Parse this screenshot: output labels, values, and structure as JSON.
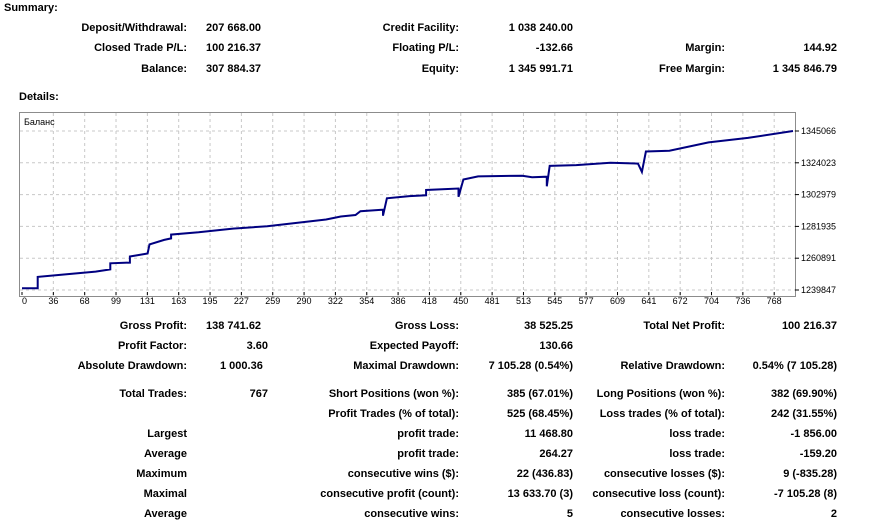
{
  "summary": {
    "title": "Summary:",
    "deposit_withdrawal_label": "Deposit/Withdrawal:",
    "deposit_withdrawal_value": "207 668.00",
    "credit_facility_label": "Credit Facility:",
    "credit_facility_value": "1 038 240.00",
    "closed_trade_pl_label": "Closed Trade P/L:",
    "closed_trade_pl_value": "100 216.37",
    "floating_pl_label": "Floating P/L:",
    "floating_pl_value": "-132.66",
    "margin_label": "Margin:",
    "margin_value": "144.92",
    "balance_label": "Balance:",
    "balance_value": "307 884.37",
    "equity_label": "Equity:",
    "equity_value": "1 345 991.71",
    "free_margin_label": "Free Margin:",
    "free_margin_value": "1 345 846.79"
  },
  "details": {
    "title": "Details:"
  },
  "chart_data": {
    "type": "line",
    "legend": "Баланс",
    "x_ticks": [
      "0",
      "36",
      "68",
      "99",
      "131",
      "163",
      "195",
      "227",
      "259",
      "290",
      "322",
      "354",
      "386",
      "418",
      "450",
      "481",
      "513",
      "545",
      "577",
      "609",
      "641",
      "672",
      "704",
      "736",
      "768"
    ],
    "y_ticks": [
      "1345066",
      "1324023",
      "1302979",
      "1281935",
      "1260891",
      "1239847"
    ],
    "ylim": [
      1239847,
      1345066
    ],
    "xlim": [
      0,
      786
    ],
    "grid": true,
    "line_color": "#000080",
    "series": [
      {
        "x": 0,
        "y": 1241000
      },
      {
        "x": 16,
        "y": 1241000
      },
      {
        "x": 16,
        "y": 1248500
      },
      {
        "x": 40,
        "y": 1250000
      },
      {
        "x": 75,
        "y": 1252000
      },
      {
        "x": 90,
        "y": 1253500
      },
      {
        "x": 90,
        "y": 1257500
      },
      {
        "x": 110,
        "y": 1258000
      },
      {
        "x": 110,
        "y": 1262000
      },
      {
        "x": 128,
        "y": 1264000
      },
      {
        "x": 130,
        "y": 1270000
      },
      {
        "x": 145,
        "y": 1273000
      },
      {
        "x": 152,
        "y": 1274000
      },
      {
        "x": 152,
        "y": 1276500
      },
      {
        "x": 180,
        "y": 1278000
      },
      {
        "x": 215,
        "y": 1280500
      },
      {
        "x": 250,
        "y": 1282000
      },
      {
        "x": 290,
        "y": 1285000
      },
      {
        "x": 310,
        "y": 1286500
      },
      {
        "x": 325,
        "y": 1288500
      },
      {
        "x": 340,
        "y": 1289500
      },
      {
        "x": 345,
        "y": 1292000
      },
      {
        "x": 368,
        "y": 1293000
      },
      {
        "x": 368,
        "y": 1289000
      },
      {
        "x": 372,
        "y": 1300500
      },
      {
        "x": 395,
        "y": 1302000
      },
      {
        "x": 412,
        "y": 1302500
      },
      {
        "x": 412,
        "y": 1306000
      },
      {
        "x": 445,
        "y": 1307000
      },
      {
        "x": 445,
        "y": 1301500
      },
      {
        "x": 450,
        "y": 1313000
      },
      {
        "x": 465,
        "y": 1315000
      },
      {
        "x": 510,
        "y": 1315500
      },
      {
        "x": 520,
        "y": 1314500
      },
      {
        "x": 535,
        "y": 1314800
      },
      {
        "x": 535,
        "y": 1308500
      },
      {
        "x": 538,
        "y": 1322000
      },
      {
        "x": 565,
        "y": 1322500
      },
      {
        "x": 600,
        "y": 1324000
      },
      {
        "x": 628,
        "y": 1323500
      },
      {
        "x": 632,
        "y": 1318000
      },
      {
        "x": 636,
        "y": 1331500
      },
      {
        "x": 660,
        "y": 1332000
      },
      {
        "x": 700,
        "y": 1337500
      },
      {
        "x": 740,
        "y": 1340500
      },
      {
        "x": 786,
        "y": 1345066
      }
    ]
  },
  "stats": {
    "gross_profit_label": "Gross Profit:",
    "gross_profit_value": "138 741.62",
    "gross_loss_label": "Gross Loss:",
    "gross_loss_value": "38 525.25",
    "total_net_profit_label": "Total Net Profit:",
    "total_net_profit_value": "100 216.37",
    "profit_factor_label": "Profit Factor:",
    "profit_factor_value": "3.60",
    "expected_payoff_label": "Expected Payoff:",
    "expected_payoff_value": "130.66",
    "absolute_drawdown_label": "Absolute Drawdown:",
    "absolute_drawdown_value": "1 000.36",
    "maximal_drawdown_label": "Maximal Drawdown:",
    "maximal_drawdown_value": "7 105.28 (0.54%)",
    "relative_drawdown_label": "Relative Drawdown:",
    "relative_drawdown_value": "0.54% (7 105.28)",
    "total_trades_label": "Total Trades:",
    "total_trades_value": "767",
    "short_positions_label": "Short Positions (won %):",
    "short_positions_value": "385 (67.01%)",
    "long_positions_label": "Long Positions (won %):",
    "long_positions_value": "382 (69.90%)",
    "profit_trades_label": "Profit Trades (% of total):",
    "profit_trades_value": "525 (68.45%)",
    "loss_trades_label": "Loss trades (% of total):",
    "loss_trades_value": "242 (31.55%)",
    "largest_label": "Largest",
    "largest_profit_label": "profit trade:",
    "largest_profit_value": "11 468.80",
    "largest_loss_label": "loss trade:",
    "largest_loss_value": "-1 856.00",
    "average_label": "Average",
    "average_profit_label": "profit trade:",
    "average_profit_value": "264.27",
    "average_loss_label": "loss trade:",
    "average_loss_value": "-159.20",
    "maximum_label": "Maximum",
    "max_consec_wins_label": "consecutive wins ($):",
    "max_consec_wins_value": "22 (436.83)",
    "max_consec_losses_label": "consecutive losses ($):",
    "max_consec_losses_value": "9 (-835.28)",
    "maximal_label": "Maximal",
    "maximal_consec_profit_label": "consecutive profit (count):",
    "maximal_consec_profit_value": "13 633.70 (3)",
    "maximal_consec_loss_label": "consecutive loss (count):",
    "maximal_consec_loss_value": "-7 105.28 (8)",
    "average2_label": "Average",
    "avg_consec_wins_label": "consecutive wins:",
    "avg_consec_wins_value": "5",
    "avg_consec_losses_label": "consecutive losses:",
    "avg_consec_losses_value": "2"
  }
}
